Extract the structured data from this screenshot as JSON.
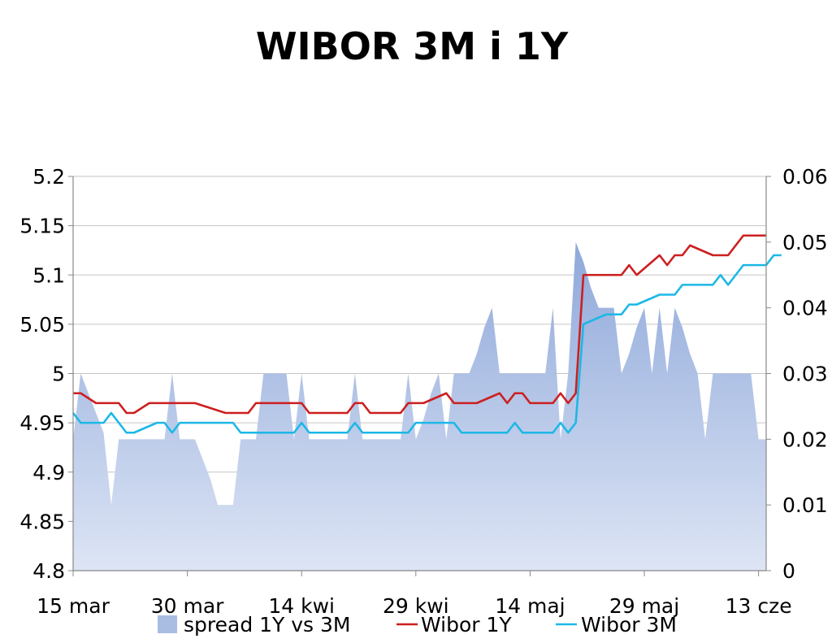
{
  "chart_data": {
    "type": "line",
    "title": "WIBOR 3M i 1Y",
    "x": {
      "start": "2011-03-15",
      "end": "2011-06-14",
      "tick_labels": [
        "15 mar",
        "30 mar",
        "14 kwi",
        "29 kwi",
        "14 maj",
        "29 maj",
        "13 cze"
      ]
    },
    "y_left": {
      "min": 4.8,
      "max": 5.2,
      "ticks": [
        "4.8",
        "4.85",
        "4.9",
        "4.95",
        "5",
        "5.05",
        "5.1",
        "5.15",
        "5.2"
      ]
    },
    "y_right": {
      "min": 0,
      "max": 0.06,
      "ticks": [
        "0",
        "0.01",
        "0.02",
        "0.03",
        "0.04",
        "0.05",
        "0.06"
      ]
    },
    "grid": true,
    "legend_position": "bottom",
    "series": [
      {
        "name": "spread 1Y vs 3M",
        "kind": "area",
        "axis": "right",
        "color": "#a9bde3",
        "points": [
          [
            "2011-03-15",
            0.02
          ],
          [
            "2011-03-16",
            0.03
          ],
          [
            "2011-03-17",
            0.027
          ],
          [
            "2011-03-18",
            0.024
          ],
          [
            "2011-03-19",
            0.021
          ],
          [
            "2011-03-20",
            0.01
          ],
          [
            "2011-03-21",
            0.02
          ],
          [
            "2011-03-22",
            0.02
          ],
          [
            "2011-03-23",
            0.02
          ],
          [
            "2011-03-24",
            0.02
          ],
          [
            "2011-03-25",
            0.02
          ],
          [
            "2011-03-26",
            0.02
          ],
          [
            "2011-03-27",
            0.02
          ],
          [
            "2011-03-28",
            0.03
          ],
          [
            "2011-03-29",
            0.02
          ],
          [
            "2011-03-30",
            0.02
          ],
          [
            "2011-03-31",
            0.02
          ],
          [
            "2011-04-01",
            0.017
          ],
          [
            "2011-04-02",
            0.014
          ],
          [
            "2011-04-03",
            0.01
          ],
          [
            "2011-04-04",
            0.01
          ],
          [
            "2011-04-05",
            0.01
          ],
          [
            "2011-04-06",
            0.02
          ],
          [
            "2011-04-07",
            0.02
          ],
          [
            "2011-04-08",
            0.02
          ],
          [
            "2011-04-09",
            0.03
          ],
          [
            "2011-04-10",
            0.03
          ],
          [
            "2011-04-11",
            0.03
          ],
          [
            "2011-04-12",
            0.03
          ],
          [
            "2011-04-13",
            0.02
          ],
          [
            "2011-04-14",
            0.03
          ],
          [
            "2011-04-15",
            0.02
          ],
          [
            "2011-04-16",
            0.02
          ],
          [
            "2011-04-17",
            0.02
          ],
          [
            "2011-04-18",
            0.02
          ],
          [
            "2011-04-19",
            0.02
          ],
          [
            "2011-04-20",
            0.02
          ],
          [
            "2011-04-21",
            0.03
          ],
          [
            "2011-04-22",
            0.02
          ],
          [
            "2011-04-23",
            0.02
          ],
          [
            "2011-04-24",
            0.02
          ],
          [
            "2011-04-25",
            0.02
          ],
          [
            "2011-04-26",
            0.02
          ],
          [
            "2011-04-27",
            0.02
          ],
          [
            "2011-04-28",
            0.03
          ],
          [
            "2011-04-29",
            0.02
          ],
          [
            "2011-04-30",
            0.023
          ],
          [
            "2011-05-01",
            0.027
          ],
          [
            "2011-05-02",
            0.03
          ],
          [
            "2011-05-03",
            0.02
          ],
          [
            "2011-05-04",
            0.03
          ],
          [
            "2011-05-05",
            0.03
          ],
          [
            "2011-05-06",
            0.03
          ],
          [
            "2011-05-07",
            0.033
          ],
          [
            "2011-05-08",
            0.037
          ],
          [
            "2011-05-09",
            0.04
          ],
          [
            "2011-05-10",
            0.03
          ],
          [
            "2011-05-11",
            0.03
          ],
          [
            "2011-05-12",
            0.03
          ],
          [
            "2011-05-13",
            0.03
          ],
          [
            "2011-05-14",
            0.03
          ],
          [
            "2011-05-15",
            0.03
          ],
          [
            "2011-05-16",
            0.03
          ],
          [
            "2011-05-17",
            0.04
          ],
          [
            "2011-05-18",
            0.02
          ],
          [
            "2011-05-19",
            0.03
          ],
          [
            "2011-05-20",
            0.05
          ],
          [
            "2011-05-21",
            0.047
          ],
          [
            "2011-05-22",
            0.043
          ],
          [
            "2011-05-23",
            0.04
          ],
          [
            "2011-05-24",
            0.04
          ],
          [
            "2011-05-25",
            0.04
          ],
          [
            "2011-05-26",
            0.03
          ],
          [
            "2011-05-27",
            0.033
          ],
          [
            "2011-05-28",
            0.037
          ],
          [
            "2011-05-29",
            0.04
          ],
          [
            "2011-05-30",
            0.03
          ],
          [
            "2011-05-31",
            0.04
          ],
          [
            "2011-06-01",
            0.03
          ],
          [
            "2011-06-02",
            0.04
          ],
          [
            "2011-06-03",
            0.037
          ],
          [
            "2011-06-04",
            0.033
          ],
          [
            "2011-06-05",
            0.03
          ],
          [
            "2011-06-06",
            0.02
          ],
          [
            "2011-06-07",
            0.03
          ],
          [
            "2011-06-08",
            0.03
          ],
          [
            "2011-06-09",
            0.03
          ],
          [
            "2011-06-10",
            0.03
          ],
          [
            "2011-06-11",
            0.03
          ],
          [
            "2011-06-12",
            0.03
          ],
          [
            "2011-06-13",
            0.02
          ],
          [
            "2011-06-14",
            0.02
          ]
        ]
      },
      {
        "name": "Wibor 1Y",
        "kind": "line",
        "axis": "left",
        "color": "#cc1f1f",
        "points": [
          [
            "2011-03-15",
            4.98
          ],
          [
            "2011-03-16",
            4.98
          ],
          [
            "2011-03-18",
            4.97
          ],
          [
            "2011-03-21",
            4.97
          ],
          [
            "2011-03-22",
            4.96
          ],
          [
            "2011-03-23",
            4.96
          ],
          [
            "2011-03-25",
            4.97
          ],
          [
            "2011-03-31",
            4.97
          ],
          [
            "2011-04-04",
            4.96
          ],
          [
            "2011-04-07",
            4.96
          ],
          [
            "2011-04-08",
            4.97
          ],
          [
            "2011-04-14",
            4.97
          ],
          [
            "2011-04-15",
            4.96
          ],
          [
            "2011-04-20",
            4.96
          ],
          [
            "2011-04-21",
            4.97
          ],
          [
            "2011-04-22",
            4.97
          ],
          [
            "2011-04-23",
            4.96
          ],
          [
            "2011-04-27",
            4.96
          ],
          [
            "2011-04-28",
            4.97
          ],
          [
            "2011-04-30",
            4.97
          ],
          [
            "2011-05-03",
            4.98
          ],
          [
            "2011-05-04",
            4.97
          ],
          [
            "2011-05-07",
            4.97
          ],
          [
            "2011-05-10",
            4.98
          ],
          [
            "2011-05-11",
            4.97
          ],
          [
            "2011-05-12",
            4.98
          ],
          [
            "2011-05-13",
            4.98
          ],
          [
            "2011-05-14",
            4.97
          ],
          [
            "2011-05-17",
            4.97
          ],
          [
            "2011-05-18",
            4.98
          ],
          [
            "2011-05-19",
            4.97
          ],
          [
            "2011-05-20",
            4.98
          ],
          [
            "2011-05-21",
            5.1
          ],
          [
            "2011-05-26",
            5.1
          ],
          [
            "2011-05-27",
            5.11
          ],
          [
            "2011-05-28",
            5.1
          ],
          [
            "2011-05-31",
            5.12
          ],
          [
            "2011-06-01",
            5.11
          ],
          [
            "2011-06-02",
            5.12
          ],
          [
            "2011-06-03",
            5.12
          ],
          [
            "2011-06-04",
            5.13
          ],
          [
            "2011-06-07",
            5.12
          ],
          [
            "2011-06-09",
            5.12
          ],
          [
            "2011-06-11",
            5.14
          ],
          [
            "2011-06-14",
            5.14
          ]
        ]
      },
      {
        "name": "Wibor 3M",
        "kind": "line",
        "axis": "left",
        "color": "#1cb8e6",
        "points": [
          [
            "2011-03-15",
            4.96
          ],
          [
            "2011-03-16",
            4.95
          ],
          [
            "2011-03-19",
            4.95
          ],
          [
            "2011-03-20",
            4.96
          ],
          [
            "2011-03-22",
            4.94
          ],
          [
            "2011-03-23",
            4.94
          ],
          [
            "2011-03-26",
            4.95
          ],
          [
            "2011-03-27",
            4.95
          ],
          [
            "2011-03-28",
            4.94
          ],
          [
            "2011-03-29",
            4.95
          ],
          [
            "2011-04-05",
            4.95
          ],
          [
            "2011-04-06",
            4.94
          ],
          [
            "2011-04-13",
            4.94
          ],
          [
            "2011-04-14",
            4.95
          ],
          [
            "2011-04-15",
            4.94
          ],
          [
            "2011-04-20",
            4.94
          ],
          [
            "2011-04-21",
            4.95
          ],
          [
            "2011-04-22",
            4.94
          ],
          [
            "2011-04-28",
            4.94
          ],
          [
            "2011-04-29",
            4.95
          ],
          [
            "2011-05-04",
            4.95
          ],
          [
            "2011-05-05",
            4.94
          ],
          [
            "2011-05-11",
            4.94
          ],
          [
            "2011-05-12",
            4.95
          ],
          [
            "2011-05-13",
            4.94
          ],
          [
            "2011-05-17",
            4.94
          ],
          [
            "2011-05-18",
            4.95
          ],
          [
            "2011-05-19",
            4.94
          ],
          [
            "2011-05-20",
            4.95
          ],
          [
            "2011-05-21",
            5.05
          ],
          [
            "2011-05-24",
            5.06
          ],
          [
            "2011-05-26",
            5.06
          ],
          [
            "2011-05-27",
            5.07
          ],
          [
            "2011-05-28",
            5.07
          ],
          [
            "2011-05-31",
            5.08
          ],
          [
            "2011-06-02",
            5.08
          ],
          [
            "2011-06-03",
            5.09
          ],
          [
            "2011-06-07",
            5.09
          ],
          [
            "2011-06-08",
            5.1
          ],
          [
            "2011-06-09",
            5.09
          ],
          [
            "2011-06-11",
            5.11
          ],
          [
            "2011-06-14",
            5.11
          ],
          [
            "2011-06-15",
            5.12
          ],
          [
            "2011-06-16",
            5.12
          ]
        ]
      }
    ]
  }
}
